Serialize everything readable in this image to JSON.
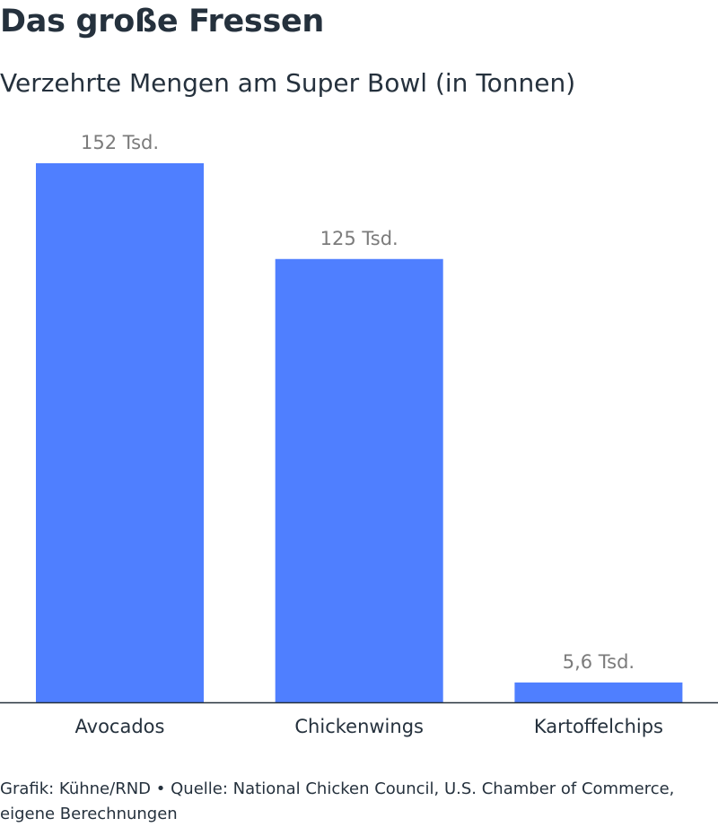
{
  "title": "Das große Fressen",
  "subtitle": "Verzehrte Mengen am Super Bowl (in Tonnen)",
  "footer": {
    "credit": "Grafik: Kühne/RND",
    "separator": "•",
    "source": "Quelle: National Chicken Council, U.S. Chamber of Commerce, eigene Berechnungen"
  },
  "colors": {
    "bar": "#4f7fff",
    "value_label": "#7b7b7b",
    "axis": "#25313d",
    "text": "#25313d"
  },
  "chart_data": {
    "type": "bar",
    "categories": [
      "Avocados",
      "Chickenwings",
      "Kartoffelchips"
    ],
    "values": [
      152000,
      125000,
      5600
    ],
    "data_labels": [
      "152 Tsd.",
      "125 Tsd.",
      "5,6 Tsd."
    ],
    "title": "Das große Fressen",
    "subtitle": "Verzehrte Mengen am Super Bowl (in Tonnen)",
    "xlabel": "",
    "ylabel": "",
    "ylim": [
      0,
      152000
    ],
    "grid": false,
    "legend": "none"
  }
}
